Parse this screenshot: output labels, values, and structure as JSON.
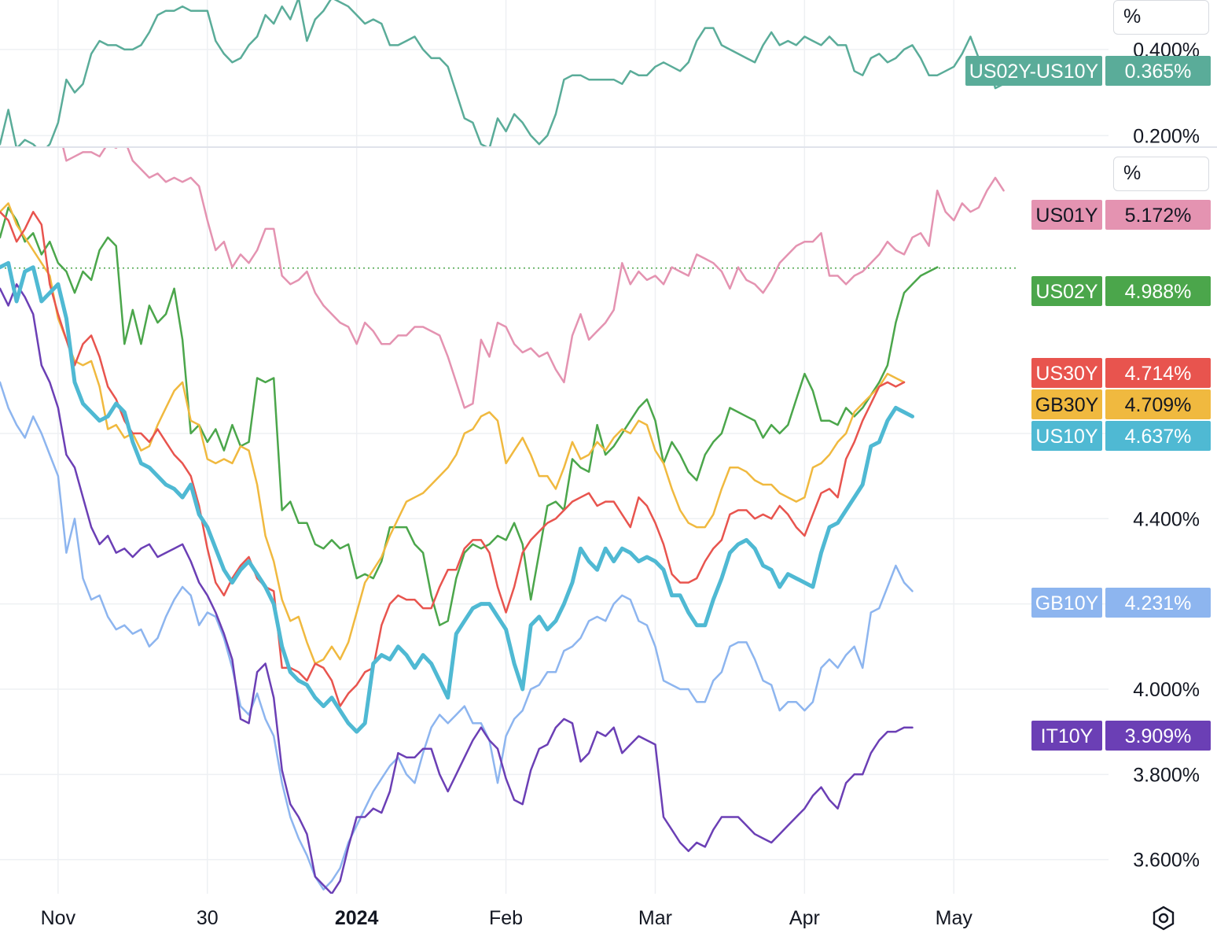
{
  "chart_data": [
    {
      "type": "line",
      "pane": "spread",
      "unit": "%",
      "y_ticks": [
        {
          "label": "0.400%",
          "value": 0.4
        },
        {
          "label": "0.200%",
          "value": 0.2
        }
      ],
      "ylim": [
        0.175,
        0.515
      ],
      "series": [
        {
          "name": "US02Y-US10Y",
          "last_value": "0.365%",
          "color": "#5aac99",
          "values": [
            0.18,
            0.26,
            0.17,
            0.19,
            0.18,
            0.16,
            0.18,
            0.23,
            0.33,
            0.3,
            0.32,
            0.39,
            0.42,
            0.41,
            0.41,
            0.4,
            0.4,
            0.41,
            0.44,
            0.48,
            0.49,
            0.49,
            0.5,
            0.49,
            0.49,
            0.49,
            0.42,
            0.39,
            0.37,
            0.38,
            0.41,
            0.43,
            0.48,
            0.46,
            0.5,
            0.47,
            0.52,
            0.42,
            0.47,
            0.49,
            0.52,
            0.51,
            0.5,
            0.48,
            0.46,
            0.47,
            0.46,
            0.41,
            0.41,
            0.42,
            0.43,
            0.4,
            0.38,
            0.38,
            0.36,
            0.3,
            0.24,
            0.23,
            0.18,
            0.17,
            0.24,
            0.21,
            0.25,
            0.23,
            0.2,
            0.18,
            0.2,
            0.25,
            0.33,
            0.34,
            0.34,
            0.33,
            0.33,
            0.33,
            0.33,
            0.32,
            0.35,
            0.34,
            0.34,
            0.36,
            0.37,
            0.36,
            0.35,
            0.37,
            0.42,
            0.45,
            0.45,
            0.41,
            0.4,
            0.39,
            0.38,
            0.37,
            0.41,
            0.44,
            0.41,
            0.42,
            0.41,
            0.43,
            0.42,
            0.41,
            0.43,
            0.41,
            0.41,
            0.35,
            0.34,
            0.38,
            0.39,
            0.37,
            0.38,
            0.4,
            0.41,
            0.38,
            0.34,
            0.34,
            0.35,
            0.36,
            0.39,
            0.43,
            0.38,
            0.38,
            0.31,
            0.32,
            0.34,
            0.38,
            0.36,
            0.38,
            0.37
          ]
        }
      ]
    },
    {
      "type": "line",
      "pane": "yields",
      "unit": "%",
      "y_ticks": [
        {
          "label": "4.600%",
          "value": 4.6
        },
        {
          "label": "4.400%",
          "value": 4.4
        },
        {
          "label": "4.200%",
          "value": 4.2
        },
        {
          "label": "4.000%",
          "value": 4.0
        },
        {
          "label": "3.800%",
          "value": 3.8
        },
        {
          "label": "3.600%",
          "value": 3.6
        }
      ],
      "ylim": [
        3.52,
        5.27
      ],
      "x_ticks": [
        {
          "label": "Nov",
          "index": 7,
          "bold": false
        },
        {
          "label": "30",
          "index": 25,
          "bold": false
        },
        {
          "label": "2024",
          "index": 43,
          "bold": true
        },
        {
          "label": "Feb",
          "index": 61,
          "bold": false
        },
        {
          "label": "Mar",
          "index": 79,
          "bold": false
        },
        {
          "label": "Apr",
          "index": 97,
          "bold": false
        },
        {
          "label": "May",
          "index": 115,
          "bold": false
        }
      ],
      "dotted_reference": {
        "value": 4.988,
        "color": "#4ba64b"
      },
      "series": [
        {
          "name": "US01Y",
          "last_value": "5.172%",
          "color": "#e493b1",
          "width": 2.5,
          "values": [
            5.36,
            5.34,
            5.33,
            5.33,
            5.34,
            5.31,
            5.28,
            5.32,
            5.24,
            5.25,
            5.26,
            5.26,
            5.25,
            5.28,
            5.27,
            5.29,
            5.24,
            5.22,
            5.2,
            5.21,
            5.19,
            5.2,
            5.19,
            5.2,
            5.18,
            5.1,
            5.03,
            5.05,
            4.99,
            5.02,
            5.0,
            5.03,
            5.08,
            5.08,
            4.97,
            4.95,
            4.96,
            4.98,
            4.93,
            4.9,
            4.88,
            4.86,
            4.85,
            4.81,
            4.86,
            4.84,
            4.81,
            4.81,
            4.83,
            4.83,
            4.85,
            4.85,
            4.84,
            4.83,
            4.78,
            4.72,
            4.66,
            4.67,
            4.82,
            4.78,
            4.86,
            4.85,
            4.81,
            4.79,
            4.8,
            4.78,
            4.79,
            4.75,
            4.72,
            4.83,
            4.88,
            4.82,
            4.84,
            4.86,
            4.89,
            5.0,
            4.95,
            4.98,
            4.96,
            4.97,
            4.95,
            4.99,
            4.98,
            4.97,
            5.02,
            5.01,
            5.0,
            4.98,
            4.94,
            4.99,
            4.96,
            4.95,
            4.93,
            4.96,
            5.0,
            5.02,
            5.04,
            5.05,
            5.05,
            5.07,
            4.97,
            4.97,
            4.95,
            4.97,
            4.98,
            5.0,
            5.02,
            5.05,
            5.03,
            5.02,
            5.06,
            5.07,
            5.04,
            5.17,
            5.12,
            5.1,
            5.14,
            5.12,
            5.13,
            5.17,
            5.2,
            5.17
          ]
        },
        {
          "name": "US02Y",
          "last_value": "4.988%",
          "color": "#4ba64b",
          "width": 2.5,
          "values": [
            5.06,
            5.13,
            5.1,
            5.05,
            5.07,
            5.02,
            5.05,
            5.0,
            4.98,
            4.93,
            4.98,
            4.96,
            5.03,
            5.06,
            5.04,
            4.81,
            4.89,
            4.81,
            4.9,
            4.86,
            4.88,
            4.94,
            4.82,
            4.6,
            4.62,
            4.58,
            4.61,
            4.56,
            4.62,
            4.57,
            4.58,
            4.73,
            4.72,
            4.73,
            4.42,
            4.44,
            4.39,
            4.39,
            4.34,
            4.33,
            4.35,
            4.33,
            4.34,
            4.26,
            4.27,
            4.26,
            4.3,
            4.38,
            4.38,
            4.38,
            4.34,
            4.32,
            4.22,
            4.15,
            4.16,
            4.26,
            4.32,
            4.34,
            4.33,
            4.34,
            4.36,
            4.35,
            4.39,
            4.34,
            4.21,
            4.32,
            4.43,
            4.44,
            4.42,
            4.54,
            4.52,
            4.51,
            4.62,
            4.55,
            4.57,
            4.6,
            4.63,
            4.66,
            4.68,
            4.63,
            4.53,
            4.58,
            4.55,
            4.51,
            4.49,
            4.55,
            4.58,
            4.6,
            4.66,
            4.65,
            4.64,
            4.63,
            4.59,
            4.62,
            4.6,
            4.62,
            4.68,
            4.74,
            4.7,
            4.63,
            4.63,
            4.62,
            4.66,
            4.64,
            4.66,
            4.69,
            4.72,
            4.76,
            4.86,
            4.93,
            4.95,
            4.97,
            4.98,
            4.99
          ]
        },
        {
          "name": "US30Y",
          "last_value": "4.714%",
          "color": "#e8544e",
          "width": 2.5,
          "values": [
            5.12,
            5.1,
            5.05,
            5.08,
            5.12,
            5.09,
            4.95,
            4.88,
            4.82,
            4.76,
            4.81,
            4.83,
            4.78,
            4.71,
            4.68,
            4.63,
            4.6,
            4.6,
            4.58,
            4.61,
            4.58,
            4.55,
            4.53,
            4.5,
            4.43,
            4.33,
            4.25,
            4.22,
            4.26,
            4.29,
            4.31,
            4.26,
            4.24,
            4.23,
            4.05,
            4.05,
            4.04,
            4.02,
            4.06,
            4.05,
            4.02,
            3.96,
            3.99,
            4.01,
            4.04,
            4.05,
            4.15,
            4.2,
            4.22,
            4.21,
            4.21,
            4.19,
            4.19,
            4.24,
            4.28,
            4.28,
            4.33,
            4.35,
            4.35,
            4.32,
            4.24,
            4.18,
            4.24,
            4.32,
            4.35,
            4.37,
            4.39,
            4.4,
            4.42,
            4.44,
            4.45,
            4.46,
            4.43,
            4.44,
            4.44,
            4.41,
            4.38,
            4.45,
            4.43,
            4.39,
            4.34,
            4.27,
            4.25,
            4.25,
            4.26,
            4.3,
            4.33,
            4.35,
            4.41,
            4.42,
            4.42,
            4.4,
            4.41,
            4.4,
            4.43,
            4.41,
            4.38,
            4.36,
            4.41,
            4.46,
            4.47,
            4.45,
            4.54,
            4.58,
            4.63,
            4.67,
            4.71,
            4.72,
            4.71,
            4.72
          ]
        },
        {
          "name": "GB30Y",
          "last_value": "4.709%",
          "color": "#f0b93f",
          "width": 2.5,
          "values": [
            5.12,
            5.14,
            5.09,
            5.06,
            5.03,
            5.0,
            4.97,
            4.87,
            4.82,
            4.77,
            4.76,
            4.77,
            4.71,
            4.61,
            4.62,
            4.59,
            4.6,
            4.56,
            4.57,
            4.62,
            4.66,
            4.7,
            4.72,
            4.63,
            4.62,
            4.54,
            4.53,
            4.54,
            4.53,
            4.57,
            4.56,
            4.48,
            4.36,
            4.3,
            4.21,
            4.16,
            4.17,
            4.11,
            4.06,
            4.07,
            4.1,
            4.07,
            4.11,
            4.18,
            4.25,
            4.28,
            4.31,
            4.36,
            4.4,
            4.44,
            4.45,
            4.46,
            4.48,
            4.5,
            4.52,
            4.55,
            4.6,
            4.61,
            4.64,
            4.65,
            4.63,
            4.53,
            4.56,
            4.59,
            4.55,
            4.5,
            4.5,
            4.47,
            4.52,
            4.58,
            4.54,
            4.55,
            4.58,
            4.56,
            4.59,
            4.61,
            4.6,
            4.63,
            4.62,
            4.56,
            4.53,
            4.47,
            4.42,
            4.39,
            4.38,
            4.38,
            4.41,
            4.47,
            4.52,
            4.52,
            4.51,
            4.49,
            4.48,
            4.48,
            4.46,
            4.45,
            4.44,
            4.45,
            4.52,
            4.53,
            4.55,
            4.58,
            4.6,
            4.65,
            4.67,
            4.69,
            4.71,
            4.74,
            4.73,
            4.72
          ]
        },
        {
          "name": "US10Y",
          "last_value": "4.637%",
          "color": "#4fb9d3",
          "width": 5,
          "values": [
            4.99,
            5.0,
            4.91,
            4.98,
            4.99,
            4.91,
            4.93,
            4.95,
            4.87,
            4.72,
            4.67,
            4.65,
            4.63,
            4.64,
            4.67,
            4.65,
            4.58,
            4.53,
            4.52,
            4.5,
            4.48,
            4.47,
            4.45,
            4.48,
            4.41,
            4.38,
            4.33,
            4.28,
            4.25,
            4.28,
            4.3,
            4.27,
            4.24,
            4.2,
            4.1,
            4.04,
            4.02,
            4.01,
            3.98,
            3.96,
            3.98,
            3.95,
            3.92,
            3.9,
            3.92,
            4.06,
            4.08,
            4.07,
            4.1,
            4.08,
            4.05,
            4.08,
            4.06,
            4.02,
            3.98,
            4.13,
            4.16,
            4.19,
            4.2,
            4.2,
            4.17,
            4.14,
            4.06,
            4.0,
            4.15,
            4.17,
            4.14,
            4.16,
            4.2,
            4.25,
            4.33,
            4.3,
            4.28,
            4.33,
            4.3,
            4.33,
            4.32,
            4.3,
            4.31,
            4.3,
            4.28,
            4.22,
            4.22,
            4.18,
            4.15,
            4.15,
            4.21,
            4.26,
            4.32,
            4.34,
            4.35,
            4.33,
            4.29,
            4.28,
            4.24,
            4.27,
            4.26,
            4.25,
            4.24,
            4.32,
            4.38,
            4.39,
            4.42,
            4.45,
            4.48,
            4.57,
            4.58,
            4.63,
            4.66,
            4.65,
            4.64
          ]
        },
        {
          "name": "GB10Y",
          "last_value": "4.231%",
          "color": "#8db5ef",
          "width": 2.5,
          "values": [
            4.72,
            4.66,
            4.62,
            4.59,
            4.64,
            4.6,
            4.55,
            4.5,
            4.32,
            4.4,
            4.26,
            4.21,
            4.22,
            4.17,
            4.14,
            4.15,
            4.13,
            4.14,
            4.1,
            4.12,
            4.17,
            4.21,
            4.24,
            4.22,
            4.15,
            4.18,
            4.17,
            4.12,
            4.05,
            3.96,
            3.94,
            3.99,
            3.93,
            3.89,
            3.78,
            3.7,
            3.65,
            3.61,
            3.56,
            3.53,
            3.55,
            3.58,
            3.64,
            3.68,
            3.72,
            3.76,
            3.79,
            3.82,
            3.84,
            3.8,
            3.78,
            3.85,
            3.91,
            3.94,
            3.92,
            3.94,
            3.96,
            3.92,
            3.92,
            3.88,
            3.78,
            3.89,
            3.93,
            3.95,
            4.0,
            4.01,
            4.04,
            4.04,
            4.09,
            4.1,
            4.12,
            4.16,
            4.17,
            4.16,
            4.2,
            4.22,
            4.21,
            4.16,
            4.15,
            4.1,
            4.02,
            4.01,
            4.0,
            4.0,
            3.97,
            3.97,
            4.02,
            4.04,
            4.1,
            4.11,
            4.11,
            4.07,
            4.02,
            4.01,
            3.95,
            3.97,
            3.97,
            3.95,
            3.97,
            4.05,
            4.07,
            4.05,
            4.08,
            4.1,
            4.05,
            4.18,
            4.19,
            4.24,
            4.29,
            4.25,
            4.23
          ]
        },
        {
          "name": "IT10Y",
          "last_value": "3.909%",
          "color": "#6b3fb5",
          "width": 2.5,
          "values": [
            4.94,
            4.9,
            4.95,
            4.92,
            4.88,
            4.76,
            4.72,
            4.66,
            4.55,
            4.52,
            4.45,
            4.38,
            4.34,
            4.36,
            4.32,
            4.33,
            4.31,
            4.33,
            4.34,
            4.31,
            4.32,
            4.33,
            4.34,
            4.3,
            4.25,
            4.22,
            4.18,
            4.13,
            4.07,
            3.93,
            3.92,
            4.04,
            4.06,
            3.98,
            3.81,
            3.73,
            3.7,
            3.66,
            3.56,
            3.54,
            3.52,
            3.55,
            3.63,
            3.7,
            3.7,
            3.72,
            3.71,
            3.76,
            3.85,
            3.84,
            3.84,
            3.86,
            3.86,
            3.8,
            3.76,
            3.8,
            3.84,
            3.88,
            3.91,
            3.88,
            3.86,
            3.79,
            3.74,
            3.73,
            3.81,
            3.86,
            3.87,
            3.91,
            3.93,
            3.92,
            3.83,
            3.85,
            3.9,
            3.89,
            3.91,
            3.85,
            3.87,
            3.89,
            3.88,
            3.87,
            3.7,
            3.67,
            3.64,
            3.62,
            3.64,
            3.63,
            3.67,
            3.7,
            3.7,
            3.7,
            3.68,
            3.66,
            3.65,
            3.64,
            3.66,
            3.68,
            3.7,
            3.72,
            3.75,
            3.77,
            3.74,
            3.72,
            3.78,
            3.8,
            3.8,
            3.85,
            3.88,
            3.9,
            3.9,
            3.91,
            3.91
          ]
        }
      ]
    }
  ]
}
